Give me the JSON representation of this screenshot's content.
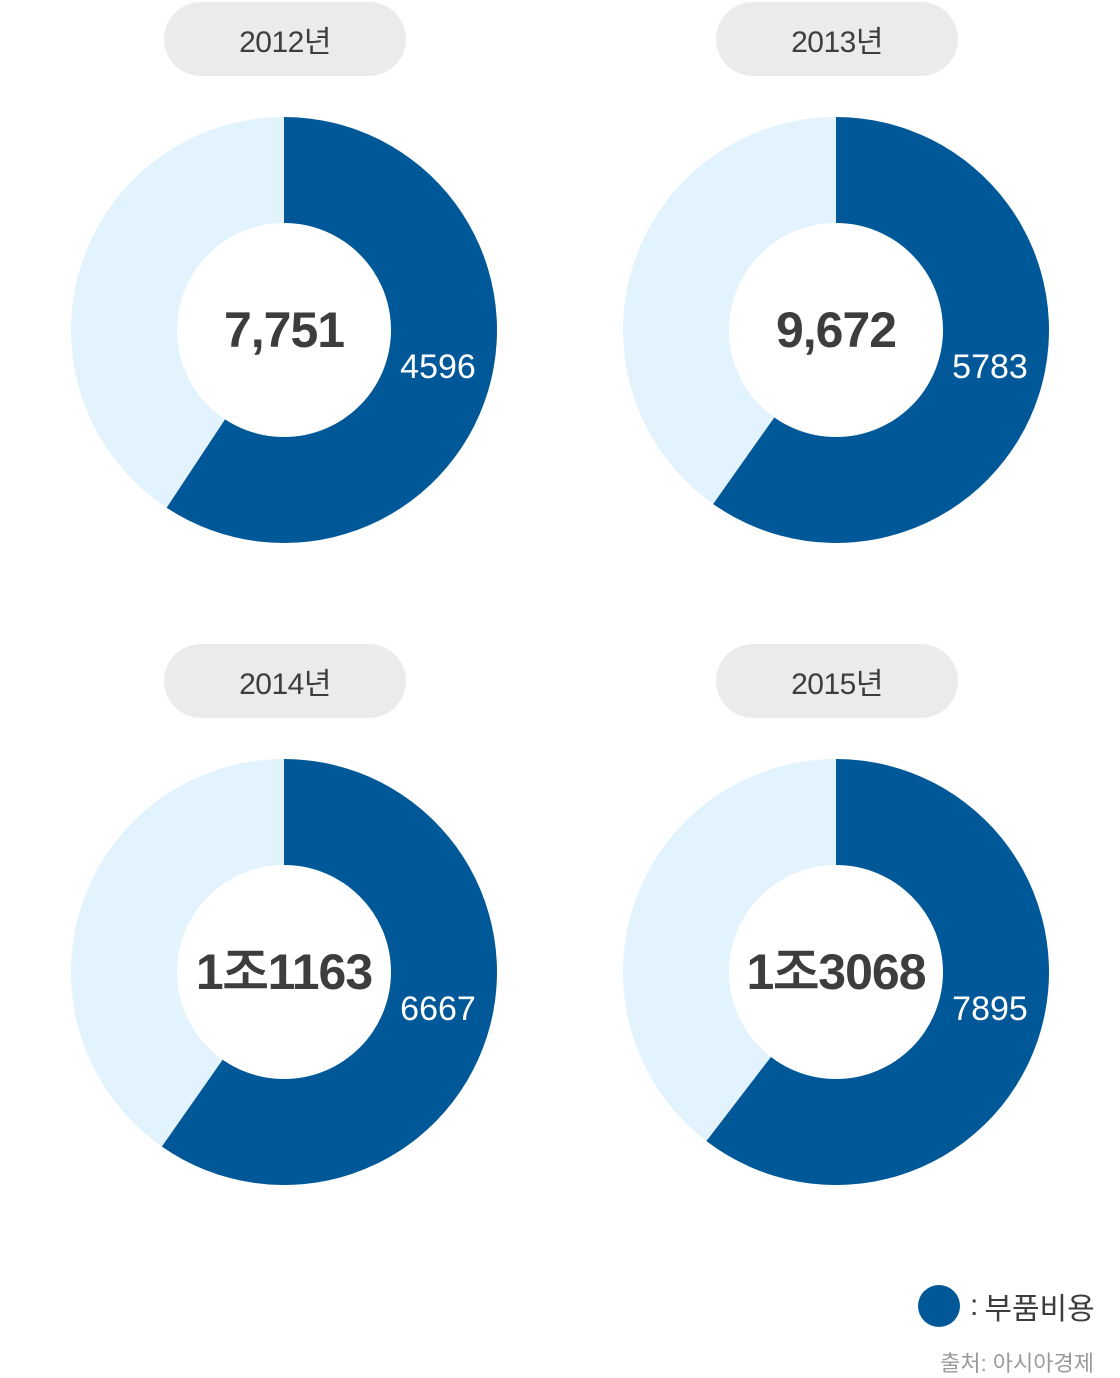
{
  "colors": {
    "part": "#005899",
    "rest": "#e3f3fd",
    "hole": "#ffffff"
  },
  "chart_data": [
    {
      "type": "pie",
      "year_label": "2012년",
      "total": 7751,
      "total_label": "7,751",
      "part": 4596,
      "part_label": "4596"
    },
    {
      "type": "pie",
      "year_label": "2013년",
      "total": 9672,
      "total_label": "9,672",
      "part": 5783,
      "part_label": "5783"
    },
    {
      "type": "pie",
      "year_label": "2014년",
      "total": 11163,
      "total_label": "1조1163",
      "part": 6667,
      "part_label": "6667"
    },
    {
      "type": "pie",
      "year_label": "2015년",
      "total": 13068,
      "total_label": "1조3068",
      "part": 7895,
      "part_label": "7895"
    }
  ],
  "legend": {
    "separator": ":",
    "label": "부품비용"
  },
  "source": "출처: 아시아경제"
}
